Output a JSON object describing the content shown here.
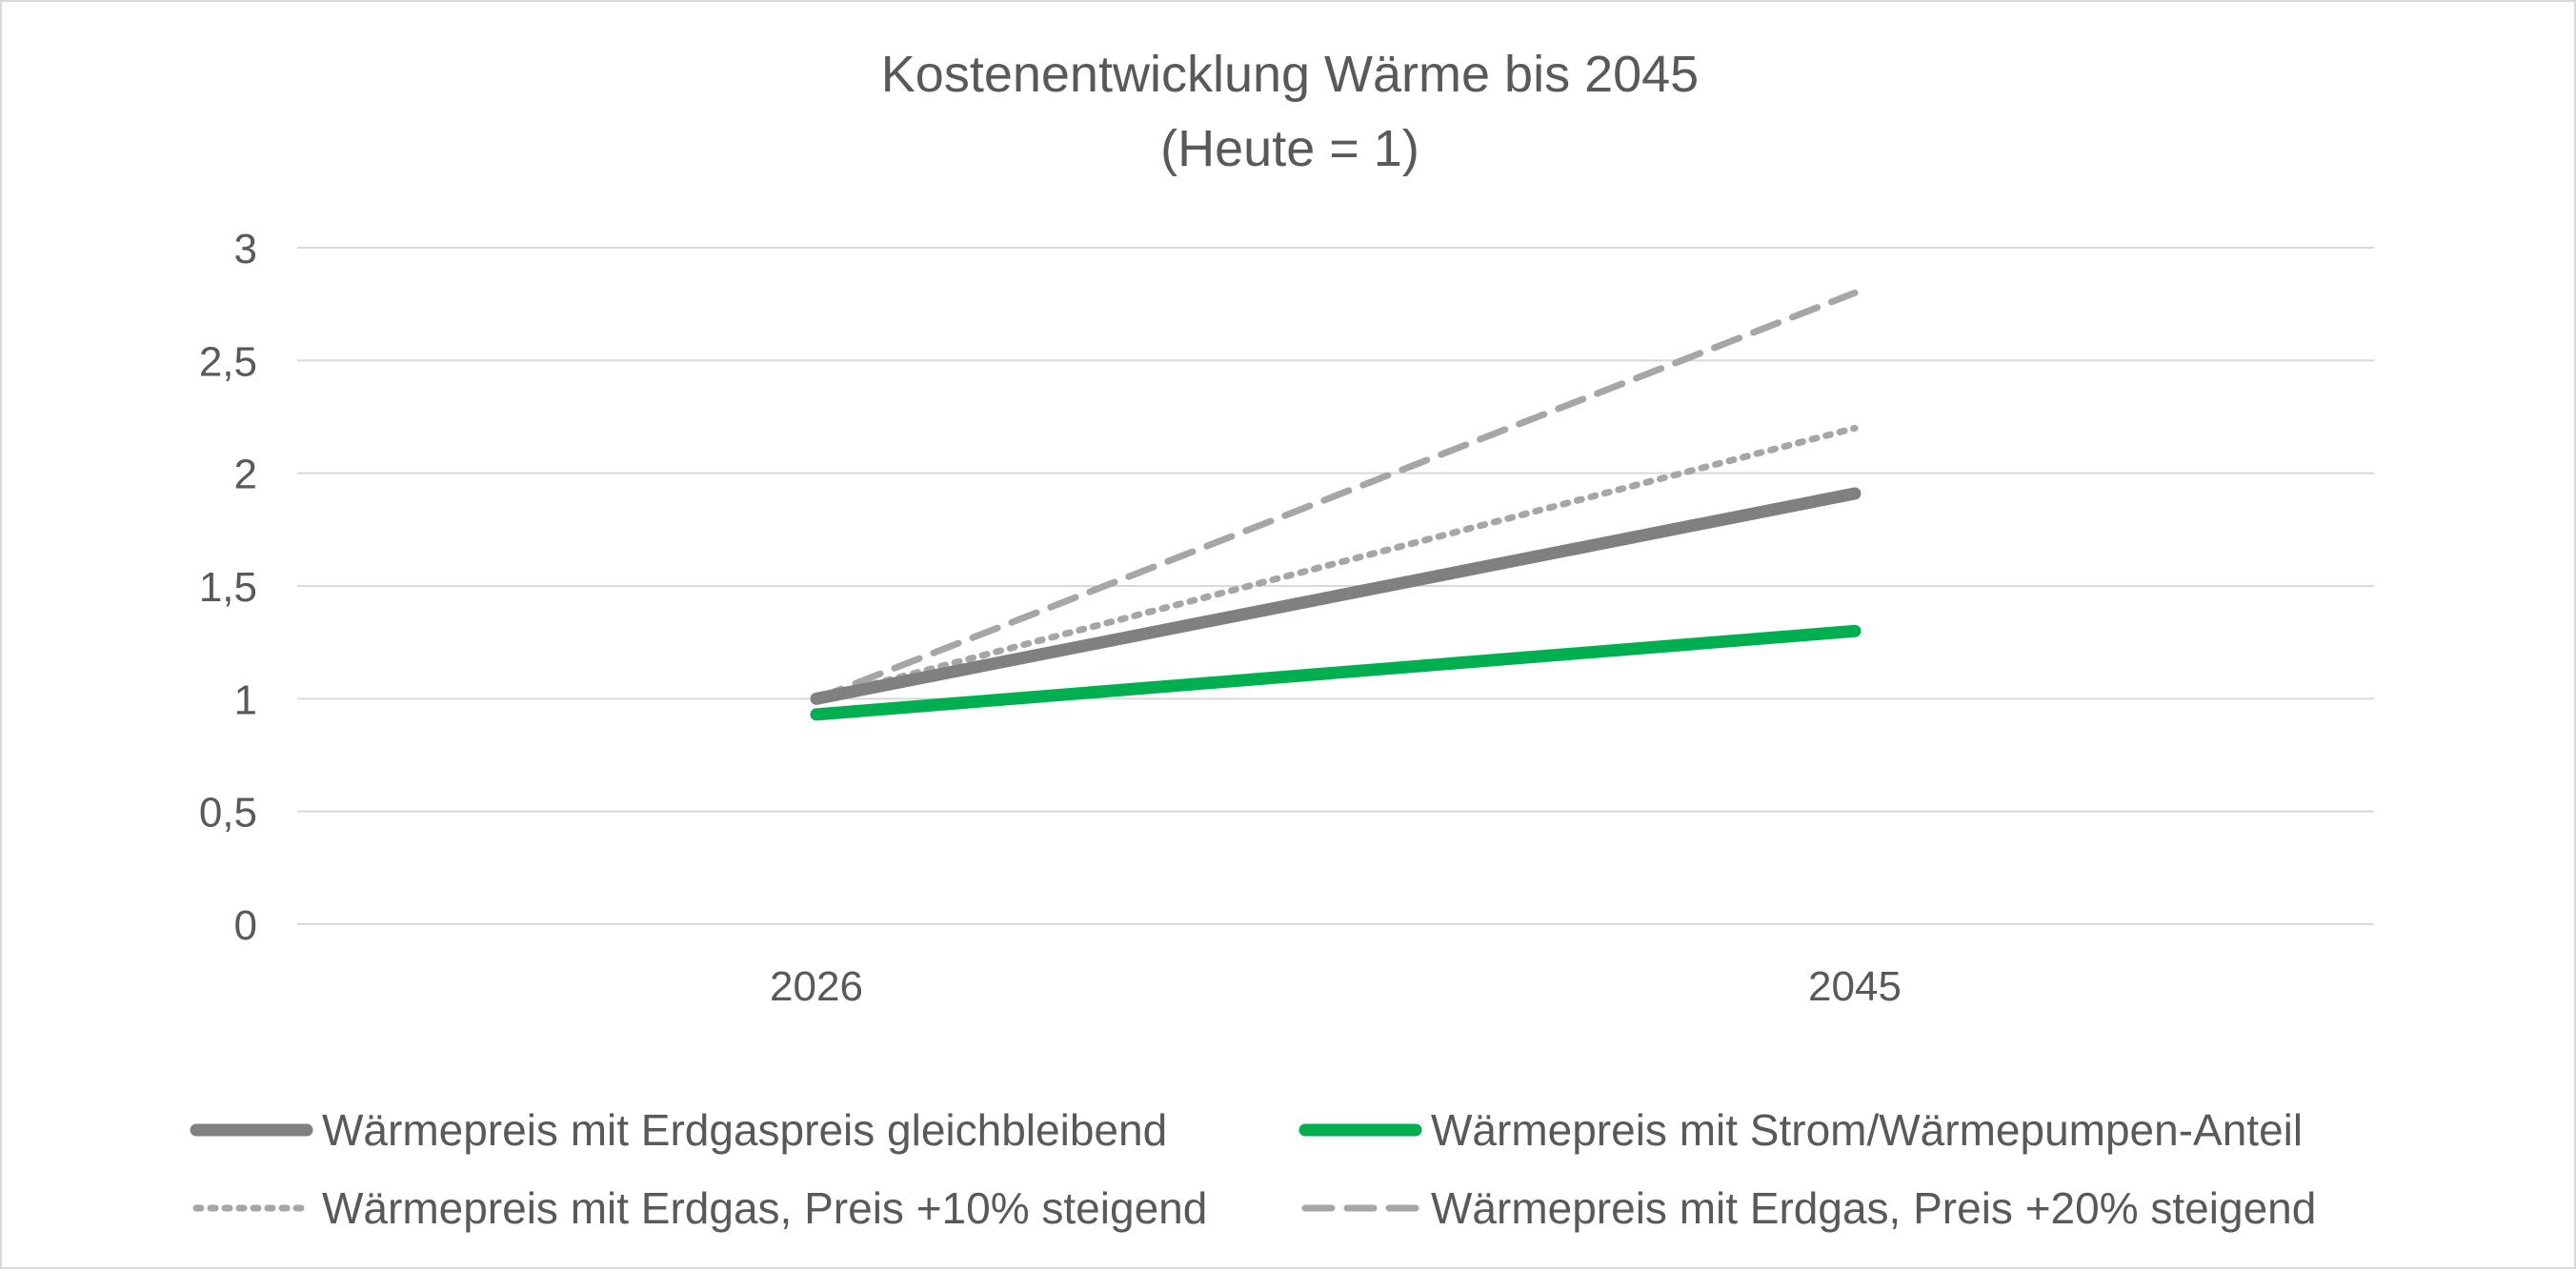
{
  "chart_data": {
    "type": "line",
    "title": "Kostenentwicklung Wärme bis 2045",
    "subtitle": "(Heute = 1)",
    "xlabel": "",
    "ylabel": "",
    "categories": [
      "2026",
      "2045"
    ],
    "ylim": [
      0,
      3
    ],
    "y_ticks": [
      "0",
      "0,5",
      "1",
      "1,5",
      "2",
      "2,5",
      "3"
    ],
    "y_tick_values": [
      0,
      0.5,
      1,
      1.5,
      2,
      2.5,
      3
    ],
    "grid": true,
    "legend_position": "bottom",
    "series": [
      {
        "name": "Wärmepreis mit Erdgaspreis gleichbleibend",
        "values": [
          1.0,
          1.91
        ],
        "color": "#808080",
        "style": "solid-thick"
      },
      {
        "name": "Wärmepreis mit Strom/Wärmepumpen-Anteil",
        "values": [
          0.93,
          1.3
        ],
        "color": "#00b050",
        "style": "solid-thick"
      },
      {
        "name": "Wärmepreis mit Erdgas, Preis +10% steigend",
        "values": [
          1.0,
          2.2
        ],
        "color": "#a6a6a6",
        "style": "dotted"
      },
      {
        "name": "Wärmepreis mit Erdgas, Preis +20% steigend",
        "values": [
          1.0,
          2.8
        ],
        "color": "#a6a6a6",
        "style": "dashed"
      }
    ]
  }
}
